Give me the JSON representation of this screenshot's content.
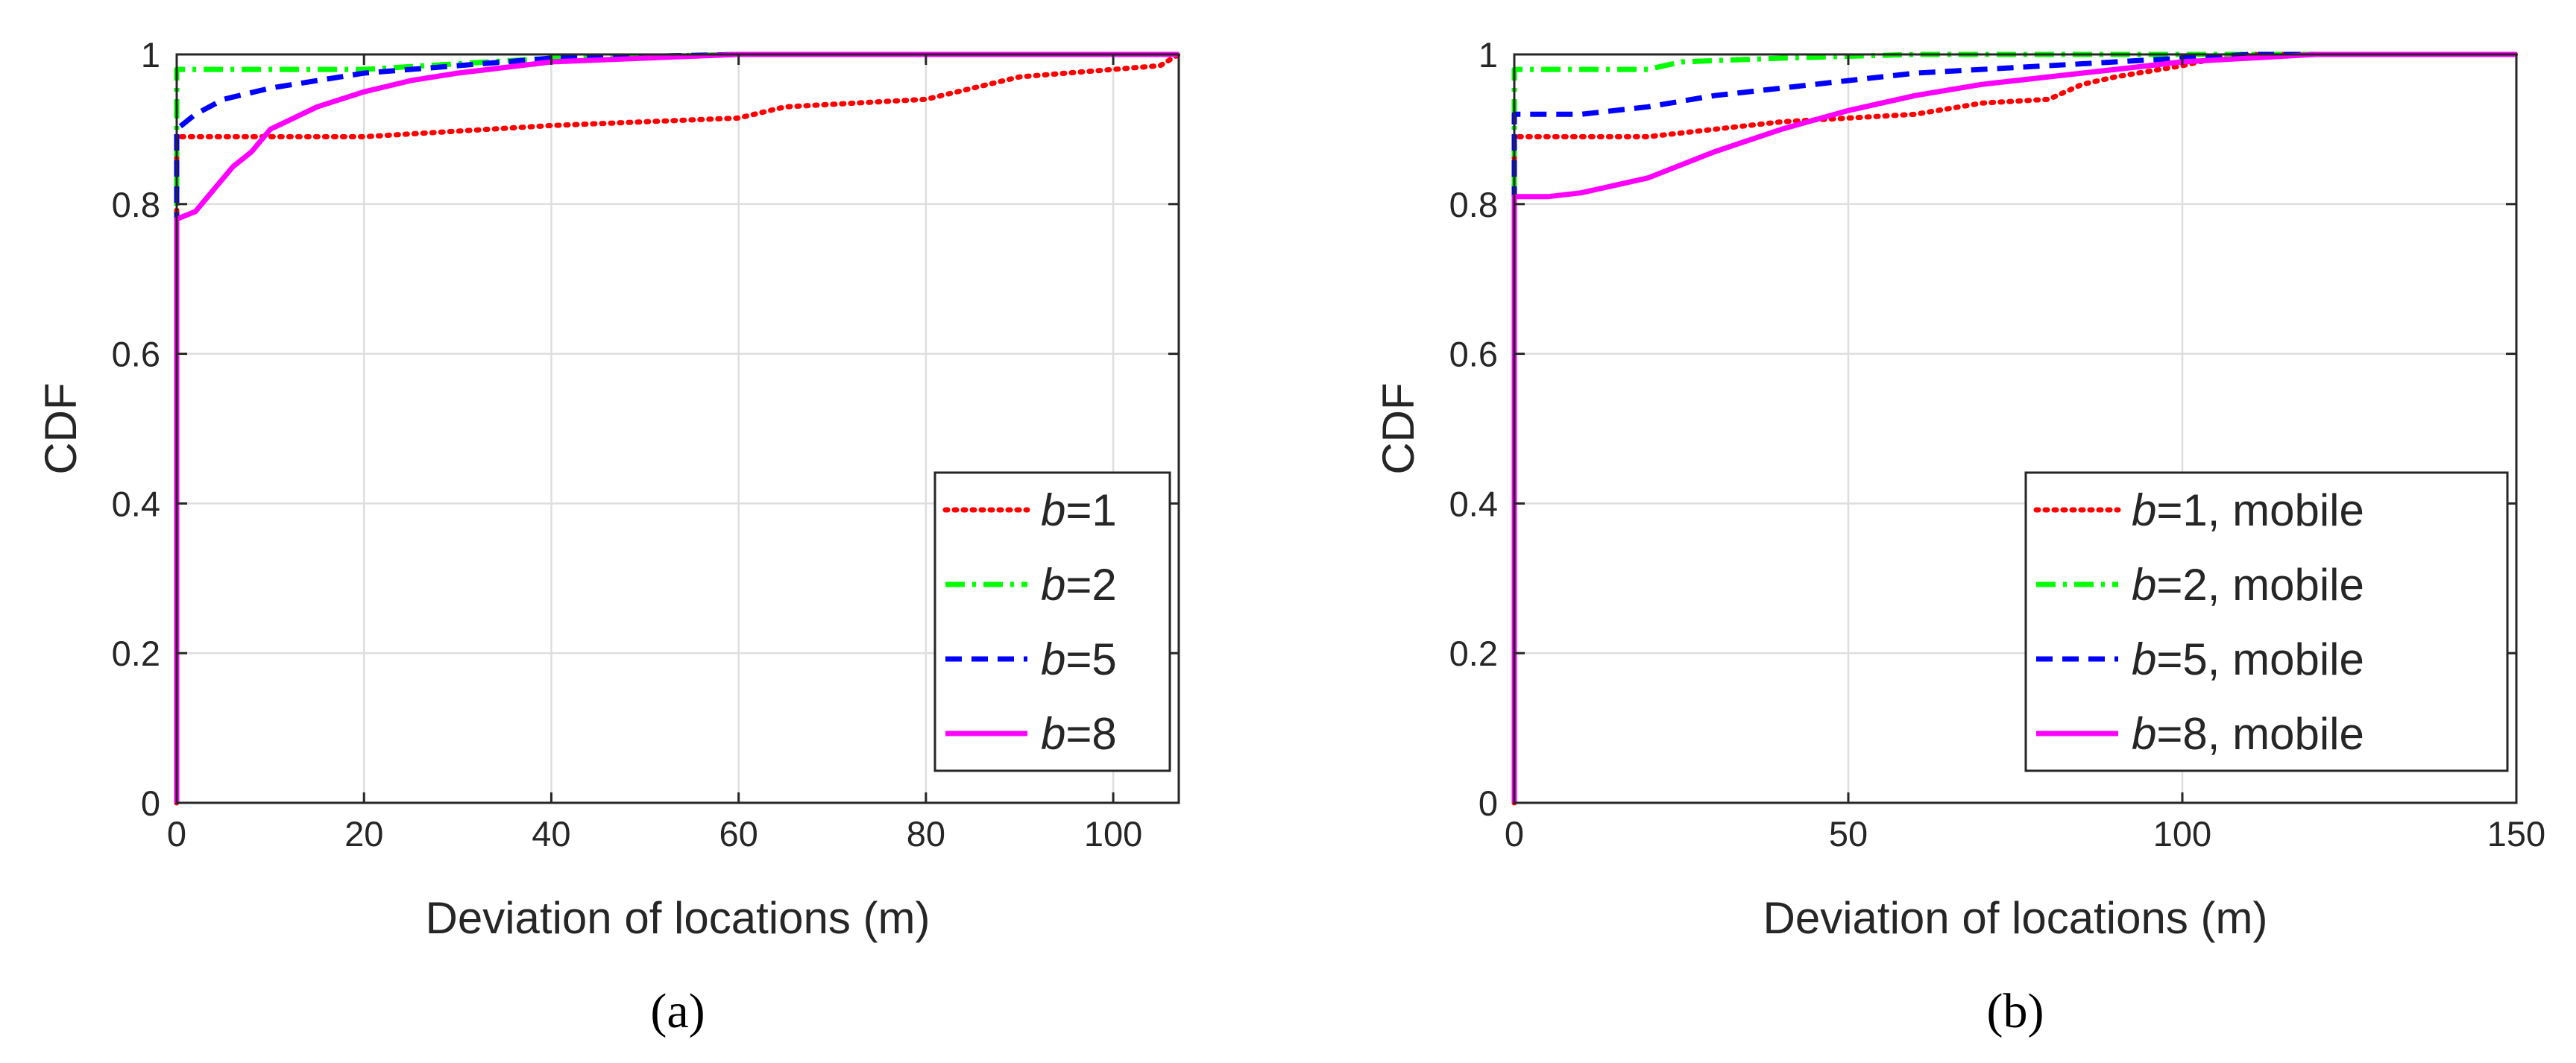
{
  "colors": {
    "red": "#ff0000",
    "green": "#00ff00",
    "blue": "#0000ff",
    "magenta": "#ff00ff"
  },
  "chart_data": [
    {
      "type": "line",
      "panel_label": "(a)",
      "xlabel": "Deviation of locations (m)",
      "ylabel": "CDF",
      "xlim": [
        0,
        107
      ],
      "ylim": [
        0,
        1
      ],
      "xticks": [
        "0",
        "20",
        "40",
        "60",
        "80",
        "100"
      ],
      "xtick_values": [
        0,
        20,
        40,
        60,
        80,
        100
      ],
      "yticks": [
        "0",
        "0.2",
        "0.4",
        "0.6",
        "0.8",
        "1"
      ],
      "ytick_values": [
        0,
        0.2,
        0.4,
        0.6,
        0.8,
        1
      ],
      "grid": true,
      "legend_position": "bottom-right",
      "series": [
        {
          "name_var": "b",
          "name_rest": "=1",
          "color": "#ff0000",
          "style": "dotted",
          "x": [
            0,
            0,
            20,
            40,
            60,
            65,
            80,
            85,
            90,
            95,
            100,
            105,
            107
          ],
          "y": [
            0,
            0.89,
            0.89,
            0.905,
            0.915,
            0.93,
            0.94,
            0.955,
            0.97,
            0.975,
            0.98,
            0.985,
            1.0
          ]
        },
        {
          "name_var": "b",
          "name_rest": "=2",
          "color": "#00ff00",
          "style": "dashdot",
          "x": [
            0,
            0,
            20,
            40,
            60,
            107
          ],
          "y": [
            0,
            0.98,
            0.98,
            0.995,
            1.0,
            1.0
          ]
        },
        {
          "name_var": "b",
          "name_rest": "=5",
          "color": "#0000ff",
          "style": "dashed",
          "x": [
            0,
            0,
            2,
            5,
            10,
            15,
            20,
            30,
            40,
            60,
            107
          ],
          "y": [
            0,
            0.9,
            0.92,
            0.94,
            0.955,
            0.965,
            0.975,
            0.985,
            0.995,
            1.0,
            1.0
          ]
        },
        {
          "name_var": "b",
          "name_rest": "=8",
          "color": "#ff00ff",
          "style": "solid",
          "x": [
            0,
            0,
            2,
            4,
            6,
            8,
            10,
            15,
            20,
            25,
            30,
            40,
            50,
            60,
            107
          ],
          "y": [
            0,
            0.78,
            0.79,
            0.82,
            0.85,
            0.87,
            0.9,
            0.93,
            0.95,
            0.965,
            0.975,
            0.99,
            0.995,
            1.0,
            1.0
          ]
        }
      ]
    },
    {
      "type": "line",
      "panel_label": "(b)",
      "xlabel": "Deviation of locations (m)",
      "ylabel": "CDF",
      "xlim": [
        0,
        150
      ],
      "ylim": [
        0,
        1
      ],
      "xticks": [
        "0",
        "50",
        "100",
        "150"
      ],
      "xtick_values": [
        0,
        50,
        100,
        150
      ],
      "yticks": [
        "0",
        "0.2",
        "0.4",
        "0.6",
        "0.8",
        "1"
      ],
      "ytick_values": [
        0,
        0.2,
        0.4,
        0.6,
        0.8,
        1
      ],
      "grid": true,
      "legend_position": "bottom-right",
      "series": [
        {
          "name_var": "b",
          "name_rest": "=1, mobile",
          "color": "#ff0000",
          "style": "dotted",
          "x": [
            0,
            0,
            20,
            40,
            60,
            70,
            80,
            85,
            90,
            100,
            105,
            110,
            150
          ],
          "y": [
            0,
            0.89,
            0.89,
            0.91,
            0.92,
            0.935,
            0.94,
            0.96,
            0.97,
            0.985,
            0.995,
            1.0,
            1.0
          ]
        },
        {
          "name_var": "b",
          "name_rest": "=2, mobile",
          "color": "#00ff00",
          "style": "dashdot",
          "x": [
            0,
            0,
            20,
            25,
            40,
            60,
            100,
            150
          ],
          "y": [
            0,
            0.98,
            0.98,
            0.99,
            0.995,
            1.0,
            1.0,
            1.0
          ]
        },
        {
          "name_var": "b",
          "name_rest": "=5, mobile",
          "color": "#0000ff",
          "style": "dashed",
          "x": [
            0,
            0,
            10,
            20,
            30,
            40,
            50,
            60,
            70,
            80,
            90,
            100,
            110,
            150
          ],
          "y": [
            0,
            0.92,
            0.92,
            0.93,
            0.945,
            0.955,
            0.965,
            0.975,
            0.98,
            0.985,
            0.99,
            0.995,
            1.0,
            1.0
          ]
        },
        {
          "name_var": "b",
          "name_rest": "=8, mobile",
          "color": "#ff00ff",
          "style": "solid",
          "x": [
            0,
            0,
            5,
            10,
            15,
            20,
            30,
            40,
            50,
            60,
            70,
            80,
            90,
            100,
            110,
            120,
            150
          ],
          "y": [
            0,
            0.81,
            0.81,
            0.815,
            0.825,
            0.835,
            0.87,
            0.9,
            0.925,
            0.945,
            0.96,
            0.97,
            0.98,
            0.99,
            0.995,
            1.0,
            1.0
          ]
        }
      ]
    }
  ]
}
